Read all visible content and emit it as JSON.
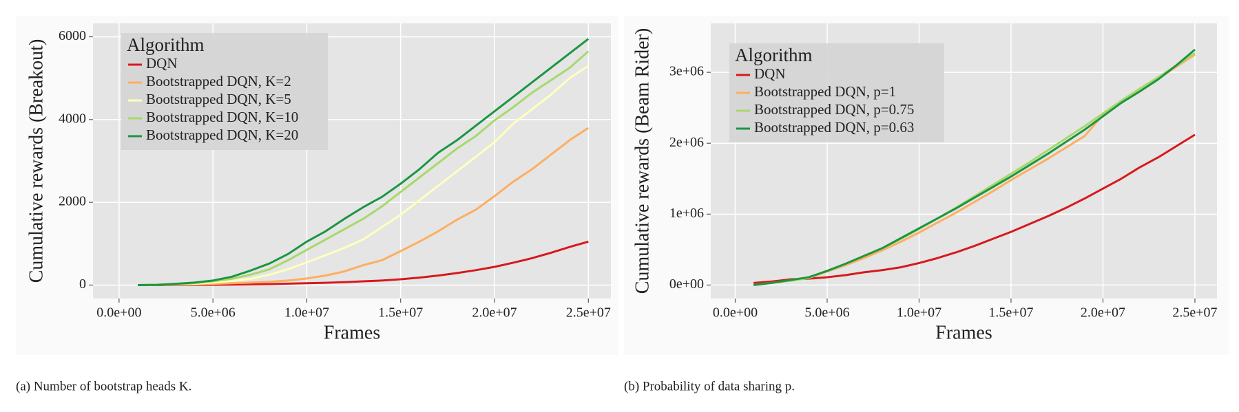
{
  "chart_data": [
    {
      "type": "line",
      "ylabel": "Cumulative rewards (Breakout)",
      "xlabel": "Frames",
      "legend_title": "Algorithm",
      "legend": "top-left",
      "grid": true,
      "caption": "(a) Number of bootstrap heads K.",
      "x": [
        1000000,
        2000000,
        3000000,
        4000000,
        5000000,
        6000000,
        7000000,
        8000000,
        9000000,
        10000000,
        11000000,
        12000000,
        13000000,
        14000000,
        15000000,
        16000000,
        17000000,
        18000000,
        19000000,
        20000000,
        21000000,
        22000000,
        23000000,
        24000000,
        25000000
      ],
      "xlim": [
        -1390000,
        26200000
      ],
      "xticks": [
        {
          "value": 0,
          "label": "0.0e+00"
        },
        {
          "value": 5000000,
          "label": "5.0e+06"
        },
        {
          "value": 10000000,
          "label": "1.0e+07"
        },
        {
          "value": 15000000,
          "label": "1.5e+07"
        },
        {
          "value": 20000000,
          "label": "2.0e+07"
        },
        {
          "value": 25000000,
          "label": "2.5e+07"
        }
      ],
      "ylim": [
        -325,
        6325
      ],
      "yticks": [
        0,
        2000,
        4000,
        6000
      ],
      "series": [
        {
          "name": "DQN",
          "color": "#d7191c",
          "values": [
            0,
            0,
            2,
            5,
            8,
            12,
            18,
            25,
            35,
            45,
            55,
            70,
            90,
            110,
            140,
            180,
            230,
            290,
            360,
            440,
            540,
            650,
            780,
            920,
            1050
          ]
        },
        {
          "name": "Bootstrapped DQN, K=2",
          "color": "#fdae61",
          "values": [
            0,
            5,
            10,
            20,
            30,
            45,
            60,
            80,
            110,
            160,
            230,
            330,
            480,
            600,
            820,
            1050,
            1300,
            1580,
            1820,
            2150,
            2500,
            2800,
            3150,
            3500,
            3800
          ]
        },
        {
          "name": "Bootstrapped DQN, K=5",
          "color": "#ffffbf",
          "values": [
            0,
            5,
            15,
            30,
            60,
            100,
            150,
            250,
            380,
            550,
            720,
            900,
            1100,
            1400,
            1700,
            2050,
            2400,
            2750,
            3100,
            3450,
            3900,
            4250,
            4600,
            5000,
            5300
          ]
        },
        {
          "name": "Bootstrapped DQN, K=10",
          "color": "#a6d96a",
          "values": [
            0,
            5,
            20,
            45,
            90,
            150,
            250,
            380,
            600,
            850,
            1100,
            1350,
            1600,
            1900,
            2250,
            2600,
            2950,
            3300,
            3600,
            3980,
            4300,
            4650,
            4950,
            5250,
            5650
          ]
        },
        {
          "name": "Bootstrapped DQN, K=20",
          "color": "#1a9641",
          "values": [
            0,
            5,
            30,
            60,
            110,
            200,
            350,
            520,
            750,
            1050,
            1300,
            1600,
            1880,
            2130,
            2450,
            2800,
            3200,
            3500,
            3850,
            4200,
            4550,
            4900,
            5250,
            5600,
            5950
          ]
        }
      ]
    },
    {
      "type": "line",
      "ylabel": "Cumulative rewards (Beam Rider)",
      "xlabel": "Frames",
      "legend_title": "Algorithm",
      "legend": "top-left",
      "grid": true,
      "caption": "(b) Probability of data sharing p.",
      "x": [
        1000000,
        2000000,
        3000000,
        4000000,
        5000000,
        6000000,
        7000000,
        8000000,
        9000000,
        10000000,
        11000000,
        12000000,
        13000000,
        14000000,
        15000000,
        16000000,
        17000000,
        18000000,
        19000000,
        20000000,
        21000000,
        22000000,
        23000000,
        24000000,
        25000000
      ],
      "xlim": [
        -1330000,
        26200000
      ],
      "xticks": [
        {
          "value": 0,
          "label": "0.0e+00"
        },
        {
          "value": 5000000,
          "label": "5.0e+06"
        },
        {
          "value": 10000000,
          "label": "1.0e+07"
        },
        {
          "value": 15000000,
          "label": "1.5e+07"
        },
        {
          "value": 20000000,
          "label": "2.0e+07"
        },
        {
          "value": 25000000,
          "label": "2.5e+07"
        }
      ],
      "ylim": [
        -190000,
        3690000
      ],
      "yticks": [
        {
          "value": 0,
          "label": "0e+00"
        },
        {
          "value": 1000000,
          "label": "1e+06"
        },
        {
          "value": 2000000,
          "label": "2e+06"
        },
        {
          "value": 3000000,
          "label": "3e+06"
        }
      ],
      "series": [
        {
          "name": "DQN",
          "color": "#d7191c",
          "values": [
            30000,
            50000,
            80000,
            90000,
            110000,
            140000,
            180000,
            210000,
            250000,
            310000,
            380000,
            460000,
            550000,
            650000,
            750000,
            860000,
            970000,
            1090000,
            1220000,
            1360000,
            1500000,
            1660000,
            1800000,
            1960000,
            2120000
          ]
        },
        {
          "name": "Bootstrapped DQN, p=1",
          "color": "#fdae61",
          "values": [
            0,
            30000,
            60000,
            100000,
            190000,
            280000,
            380000,
            490000,
            610000,
            740000,
            880000,
            1020000,
            1170000,
            1320000,
            1480000,
            1630000,
            1780000,
            1940000,
            2100000,
            2400000,
            2570000,
            2740000,
            2910000,
            3080000,
            3250000
          ]
        },
        {
          "name": "Bootstrapped DQN, p=0.75",
          "color": "#a6d96a",
          "values": [
            0,
            30000,
            60000,
            100000,
            200000,
            300000,
            410000,
            520000,
            650000,
            790000,
            940000,
            1090000,
            1250000,
            1410000,
            1570000,
            1730000,
            1900000,
            2070000,
            2240000,
            2420000,
            2600000,
            2770000,
            2930000,
            3100000,
            3270000
          ]
        },
        {
          "name": "Bootstrapped DQN, p=0.63",
          "color": "#1a9641",
          "values": [
            0,
            30000,
            70000,
            110000,
            200000,
            300000,
            410000,
            520000,
            660000,
            800000,
            940000,
            1080000,
            1230000,
            1380000,
            1530000,
            1690000,
            1850000,
            2020000,
            2190000,
            2380000,
            2570000,
            2730000,
            2900000,
            3100000,
            3320000
          ]
        }
      ]
    }
  ]
}
